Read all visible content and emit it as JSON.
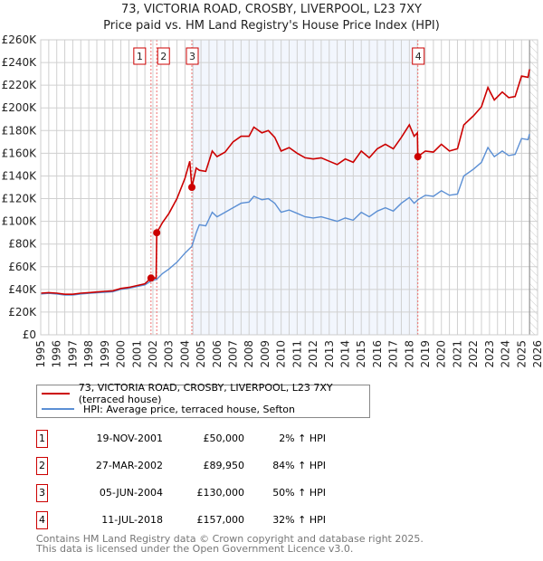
{
  "chart_data": {
    "type": "line",
    "title": "73, VICTORIA ROAD, CROSBY, LIVERPOOL, L23 7XY",
    "subtitle": "Price paid vs. HM Land Registry's House Price Index (HPI)",
    "xlim": [
      1995,
      2026
    ],
    "ylim": [
      0,
      260000
    ],
    "x_ticks": [
      "1995",
      "1996",
      "1997",
      "1998",
      "1999",
      "2000",
      "2001",
      "2002",
      "2003",
      "2004",
      "2005",
      "2006",
      "2007",
      "2008",
      "2009",
      "2010",
      "2011",
      "2012",
      "2013",
      "2014",
      "2015",
      "2016",
      "2017",
      "2018",
      "2019",
      "2020",
      "2021",
      "2022",
      "2023",
      "2024",
      "2025",
      "2026"
    ],
    "y_ticks": [
      "£0",
      "£20K",
      "£40K",
      "£60K",
      "£80K",
      "£100K",
      "£120K",
      "£140K",
      "£160K",
      "£180K",
      "£200K",
      "£220K",
      "£240K",
      "£260K"
    ],
    "grid": true,
    "shaded_range": [
      2004.43,
      2018.53
    ],
    "hatched_from": 2025.5,
    "series": [
      {
        "name": "73, VICTORIA ROAD, CROSBY, LIVERPOOL, L23 7XY (terraced house)",
        "color": "#cc0000",
        "x": [
          1995,
          1995.5,
          1996,
          1996.5,
          1997,
          1997.5,
          1998,
          1998.5,
          1999,
          1999.5,
          2000,
          2000.5,
          2001,
          2001.5,
          2001.88,
          2002.2,
          2002.24,
          2002.6,
          2003,
          2003.5,
          2004,
          2004.3,
          2004.43,
          2004.7,
          2004.9,
          2005.3,
          2005.7,
          2006,
          2006.5,
          2007,
          2007.5,
          2008,
          2008.3,
          2008.8,
          2009.2,
          2009.6,
          2010,
          2010.5,
          2011,
          2011.5,
          2012,
          2012.5,
          2013,
          2013.5,
          2014,
          2014.5,
          2015,
          2015.5,
          2016,
          2016.5,
          2017,
          2017.5,
          2018,
          2018.3,
          2018.5,
          2018.53,
          2019,
          2019.5,
          2020,
          2020.5,
          2021,
          2021.4,
          2022,
          2022.5,
          2022.9,
          2023.3,
          2023.8,
          2024.2,
          2024.6,
          2025,
          2025.4,
          2025.5
        ],
        "y": [
          36700,
          37200,
          36700,
          35700,
          35700,
          36700,
          37200,
          37700,
          38300,
          38800,
          40800,
          41800,
          43400,
          44900,
          50000,
          50000,
          89950,
          99000,
          107000,
          120000,
          138000,
          153000,
          130000,
          147000,
          145000,
          144000,
          162000,
          157000,
          161000,
          170000,
          175000,
          175000,
          183000,
          178000,
          180000,
          174000,
          162000,
          165000,
          160000,
          156000,
          155000,
          156000,
          153000,
          150000,
          155000,
          152000,
          162000,
          156000,
          164000,
          168000,
          164000,
          174000,
          185000,
          175000,
          178000,
          157000,
          162000,
          161000,
          168000,
          162000,
          164000,
          185000,
          193000,
          201000,
          218000,
          207000,
          214000,
          209000,
          210000,
          228000,
          227000,
          234000
        ]
      },
      {
        "name": "HPI: Average price, terraced house, Sefton",
        "color": "#5b8fd4",
        "x": [
          1995,
          1995.5,
          1996,
          1996.5,
          1997,
          1997.5,
          1998,
          1998.5,
          1999,
          1999.5,
          2000,
          2000.5,
          2001,
          2001.5,
          2001.9,
          2002.24,
          2002.6,
          2003,
          2003.5,
          2004,
          2004.43,
          2004.7,
          2004.9,
          2005.3,
          2005.7,
          2006,
          2006.5,
          2007,
          2007.5,
          2008,
          2008.3,
          2008.8,
          2009.2,
          2009.6,
          2010,
          2010.5,
          2011,
          2011.5,
          2012,
          2012.5,
          2013,
          2013.5,
          2014,
          2014.5,
          2015,
          2015.5,
          2016,
          2016.5,
          2017,
          2017.5,
          2018,
          2018.3,
          2018.53,
          2019,
          2019.5,
          2020,
          2020.5,
          2021,
          2021.4,
          2022,
          2022.5,
          2022.9,
          2023.3,
          2023.8,
          2024.2,
          2024.6,
          2025,
          2025.4,
          2025.5
        ],
        "y": [
          36000,
          36500,
          36000,
          35000,
          35000,
          36000,
          36500,
          37000,
          37500,
          38000,
          40000,
          41000,
          42500,
          44000,
          47500,
          49000,
          54000,
          58000,
          64000,
          72000,
          78000,
          90000,
          97000,
          96000,
          108000,
          104000,
          108000,
          112000,
          116000,
          117000,
          122000,
          119000,
          120000,
          116000,
          108000,
          110000,
          107000,
          104000,
          103000,
          104000,
          102000,
          100000,
          103000,
          101000,
          108000,
          104000,
          109000,
          112000,
          109000,
          116000,
          121000,
          116000,
          119000,
          123000,
          122000,
          127000,
          123000,
          124000,
          140000,
          146000,
          152000,
          165000,
          157000,
          162000,
          158000,
          159000,
          173000,
          172000,
          177000
        ]
      }
    ],
    "sales": [
      {
        "label": "1",
        "x": 2001.88,
        "y": 50000
      },
      {
        "label": "2",
        "x": 2002.24,
        "y": 89950
      },
      {
        "label": "3",
        "x": 2004.43,
        "y": 130000
      },
      {
        "label": "4",
        "x": 2018.53,
        "y": 157000
      }
    ]
  },
  "title": {
    "line1": "73, VICTORIA ROAD, CROSBY, LIVERPOOL, L23 7XY",
    "line2": "Price paid vs. HM Land Registry's House Price Index (HPI)"
  },
  "legend": {
    "property": "73, VICTORIA ROAD, CROSBY, LIVERPOOL, L23 7XY (terraced house)",
    "hpi": "HPI: Average price, terraced house, Sefton"
  },
  "transactions": [
    {
      "num": "1",
      "date": "19-NOV-2001",
      "price": "£50,000",
      "hpi": "2% ↑ HPI"
    },
    {
      "num": "2",
      "date": "27-MAR-2002",
      "price": "£89,950",
      "hpi": "84% ↑ HPI"
    },
    {
      "num": "3",
      "date": "05-JUN-2004",
      "price": "£130,000",
      "hpi": "50% ↑ HPI"
    },
    {
      "num": "4",
      "date": "11-JUL-2018",
      "price": "£157,000",
      "hpi": "32% ↑ HPI"
    }
  ],
  "footer": {
    "line1": "Contains HM Land Registry data © Crown copyright and database right 2025.",
    "line2": "This data is licensed under the Open Government Licence v3.0."
  }
}
